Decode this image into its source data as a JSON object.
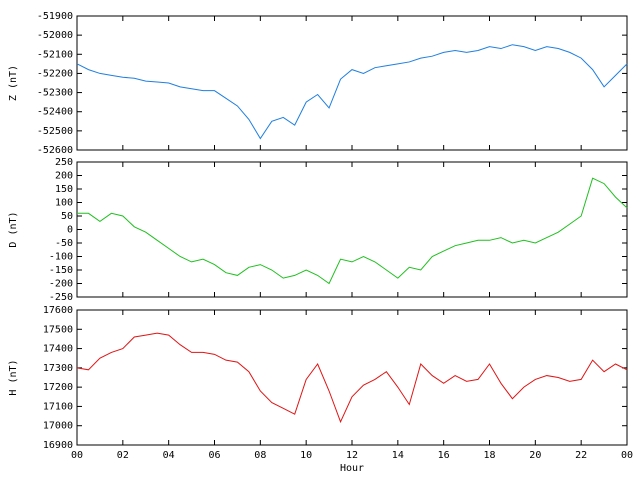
{
  "chart_data": [
    {
      "type": "line",
      "ylabel": "Z (nT)",
      "color": "#1f7fe0",
      "x": [
        0,
        0.5,
        1,
        1.5,
        2,
        2.5,
        3,
        3.5,
        4,
        4.5,
        5,
        5.5,
        6,
        6.5,
        7,
        7.5,
        8,
        8.5,
        9,
        9.5,
        10,
        10.5,
        11,
        11.5,
        12,
        12.5,
        13,
        13.5,
        14,
        14.5,
        15,
        15.5,
        16,
        16.5,
        17,
        17.5,
        18,
        18.5,
        19,
        19.5,
        20,
        20.5,
        21,
        21.5,
        22,
        22.5,
        23,
        23.5,
        24
      ],
      "values": [
        -52150,
        -52180,
        -52200,
        -52210,
        -52220,
        -52225,
        -52240,
        -52245,
        -52250,
        -52270,
        -52280,
        -52290,
        -52290,
        -52330,
        -52370,
        -52440,
        -52540,
        -52450,
        -52430,
        -52470,
        -52350,
        -52310,
        -52380,
        -52230,
        -52180,
        -52200,
        -52170,
        -52160,
        -52150,
        -52140,
        -52120,
        -52110,
        -52090,
        -52080,
        -52090,
        -52080,
        -52060,
        -52070,
        -52050,
        -52060,
        -52080,
        -52060,
        -52070,
        -52090,
        -52120,
        -52180,
        -52270,
        -52210,
        -52150
      ],
      "xlim": [
        0,
        24
      ],
      "ylim": [
        -52600,
        -51900
      ],
      "yticks": [
        -51900,
        -52000,
        -52100,
        -52200,
        -52300,
        -52400,
        -52500,
        -52600
      ]
    },
    {
      "type": "line",
      "ylabel": "D (nT)",
      "color": "#1ec01e",
      "x": [
        0,
        0.5,
        1,
        1.5,
        2,
        2.5,
        3,
        3.5,
        4,
        4.5,
        5,
        5.5,
        6,
        6.5,
        7,
        7.5,
        8,
        8.5,
        9,
        9.5,
        10,
        10.5,
        11,
        11.5,
        12,
        12.5,
        13,
        13.5,
        14,
        14.5,
        15,
        15.5,
        16,
        16.5,
        17,
        17.5,
        18,
        18.5,
        19,
        19.5,
        20,
        20.5,
        21,
        21.5,
        22,
        22.5,
        23,
        23.5,
        24
      ],
      "values": [
        60,
        60,
        30,
        60,
        50,
        10,
        -10,
        -40,
        -70,
        -100,
        -120,
        -110,
        -130,
        -160,
        -170,
        -140,
        -130,
        -150,
        -180,
        -170,
        -150,
        -170,
        -200,
        -110,
        -120,
        -100,
        -120,
        -150,
        -180,
        -140,
        -150,
        -100,
        -80,
        -60,
        -50,
        -40,
        -40,
        -30,
        -50,
        -40,
        -50,
        -30,
        -10,
        20,
        50,
        190,
        170,
        120,
        80
      ],
      "xlim": [
        0,
        24
      ],
      "ylim": [
        -250,
        250
      ],
      "yticks": [
        250,
        200,
        150,
        100,
        50,
        0,
        -50,
        -100,
        -150,
        -200,
        -250
      ]
    },
    {
      "type": "line",
      "ylabel": "H (nT)",
      "xlabel": "Hour",
      "color": "#e01414",
      "x": [
        0,
        0.5,
        1,
        1.5,
        2,
        2.5,
        3,
        3.5,
        4,
        4.5,
        5,
        5.5,
        6,
        6.5,
        7,
        7.5,
        8,
        8.5,
        9,
        9.5,
        10,
        10.5,
        11,
        11.5,
        12,
        12.5,
        13,
        13.5,
        14,
        14.5,
        15,
        15.5,
        16,
        16.5,
        17,
        17.5,
        18,
        18.5,
        19,
        19.5,
        20,
        20.5,
        21,
        21.5,
        22,
        22.5,
        23,
        23.5,
        24
      ],
      "values": [
        17300,
        17290,
        17350,
        17380,
        17400,
        17460,
        17470,
        17480,
        17470,
        17420,
        17380,
        17380,
        17370,
        17340,
        17330,
        17280,
        17180,
        17120,
        17090,
        17060,
        17240,
        17320,
        17180,
        17020,
        17150,
        17210,
        17240,
        17280,
        17200,
        17110,
        17320,
        17260,
        17220,
        17260,
        17230,
        17240,
        17320,
        17220,
        17140,
        17200,
        17240,
        17260,
        17250,
        17230,
        17240,
        17340,
        17280,
        17320,
        17290
      ],
      "xlim": [
        0,
        24
      ],
      "ylim": [
        16900,
        17600
      ],
      "yticks": [
        17600,
        17500,
        17400,
        17300,
        17200,
        17100,
        17000,
        16900
      ],
      "xticks": [
        {
          "value": 0,
          "label": "00"
        },
        {
          "value": 2,
          "label": "02"
        },
        {
          "value": 4,
          "label": "04"
        },
        {
          "value": 6,
          "label": "06"
        },
        {
          "value": 8,
          "label": "08"
        },
        10,
        12,
        14,
        16,
        18,
        20,
        22,
        {
          "value": 24,
          "label": "00"
        }
      ]
    }
  ]
}
